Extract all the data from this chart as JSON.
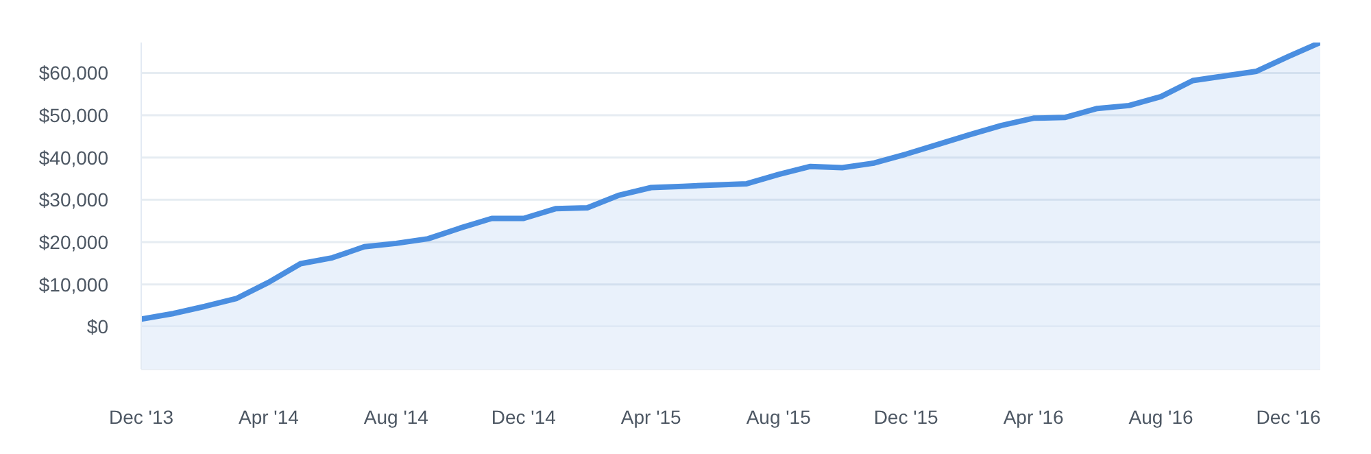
{
  "chart_data": {
    "type": "area",
    "x": [
      "2013-12",
      "2014-01",
      "2014-02",
      "2014-03",
      "2014-04",
      "2014-05",
      "2014-06",
      "2014-07",
      "2014-08",
      "2014-09",
      "2014-10",
      "2014-11",
      "2014-12",
      "2015-01",
      "2015-02",
      "2015-03",
      "2015-04",
      "2015-05",
      "2015-06",
      "2015-07",
      "2015-08",
      "2015-09",
      "2015-10",
      "2015-11",
      "2015-12",
      "2016-01",
      "2016-02",
      "2016-03",
      "2016-04",
      "2016-05",
      "2016-06",
      "2016-07",
      "2016-08",
      "2016-09",
      "2016-10",
      "2016-11",
      "2016-12",
      "2017-01"
    ],
    "series": [
      {
        "color": "#4a8ee0",
        "values": [
          1800,
          3100,
          4800,
          6700,
          10500,
          14900,
          16300,
          18900,
          19700,
          20800,
          23300,
          25600,
          25600,
          27900,
          28100,
          31100,
          32900,
          33200,
          33500,
          33800,
          36000,
          37900,
          37600,
          38700,
          40800,
          43100,
          45400,
          47600,
          49300,
          49500,
          51600,
          52300,
          54400,
          58200,
          59300,
          60400,
          63900,
          67200
        ]
      }
    ],
    "xlim": [
      "2013-12",
      "2017-01"
    ],
    "xticks": [
      {
        "value": "2013-12",
        "label": "Dec '13"
      },
      {
        "value": "2014-04",
        "label": "Apr '14"
      },
      {
        "value": "2014-08",
        "label": "Aug '14"
      },
      {
        "value": "2014-12",
        "label": "Dec '14"
      },
      {
        "value": "2015-04",
        "label": "Apr '15"
      },
      {
        "value": "2015-08",
        "label": "Aug '15"
      },
      {
        "value": "2015-12",
        "label": "Dec '15"
      },
      {
        "value": "2016-04",
        "label": "Apr '16"
      },
      {
        "value": "2016-08",
        "label": "Aug '16"
      },
      {
        "value": "2016-12",
        "label": "Dec '16"
      }
    ],
    "ylim": [
      -10000,
      67200
    ],
    "yticks": [
      {
        "value": -10000,
        "label": null
      },
      {
        "value": 0,
        "label": "$0"
      },
      {
        "value": 10000,
        "label": "$10,000"
      },
      {
        "value": 20000,
        "label": "$20,000"
      },
      {
        "value": 30000,
        "label": "$30,000"
      },
      {
        "value": 40000,
        "label": "$40,000"
      },
      {
        "value": 50000,
        "label": "$50,000"
      },
      {
        "value": 60000,
        "label": "$60,000"
      }
    ],
    "bands": [
      {
        "axis": "y",
        "from": -10000,
        "to": 0,
        "color": "#ebf2fb"
      }
    ],
    "grid": "y",
    "legend": false,
    "marker": "none",
    "line_style": "solid"
  }
}
